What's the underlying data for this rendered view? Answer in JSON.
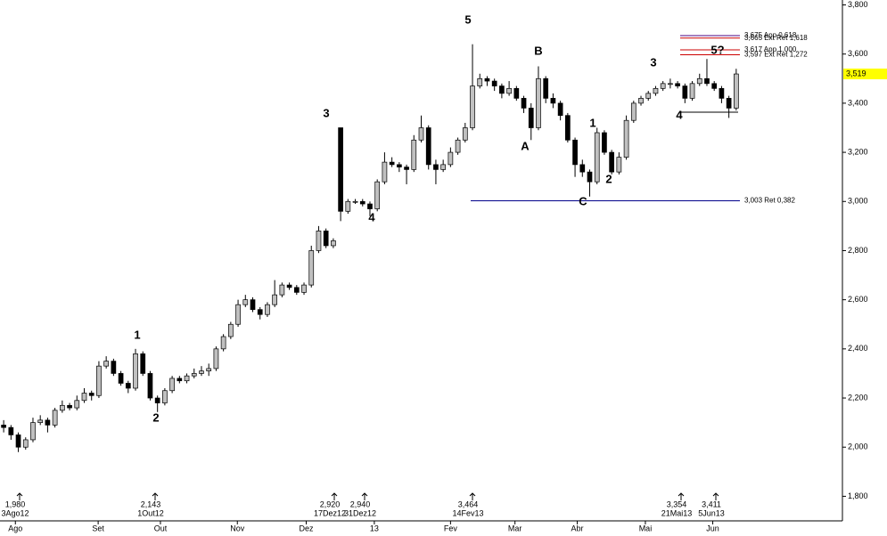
{
  "chart_data": {
    "type": "candlestick",
    "candles": [
      [
        2090,
        2110,
        2060,
        2080
      ],
      [
        2080,
        2090,
        2030,
        2050
      ],
      [
        2050,
        2060,
        1980,
        2000
      ],
      [
        2000,
        2040,
        1990,
        2030
      ],
      [
        2030,
        2120,
        2020,
        2100
      ],
      [
        2100,
        2130,
        2090,
        2110
      ],
      [
        2110,
        2120,
        2060,
        2090
      ],
      [
        2090,
        2160,
        2080,
        2150
      ],
      [
        2150,
        2190,
        2140,
        2170
      ],
      [
        2170,
        2180,
        2150,
        2160
      ],
      [
        2160,
        2210,
        2150,
        2190
      ],
      [
        2190,
        2240,
        2180,
        2220
      ],
      [
        2220,
        2230,
        2190,
        2210
      ],
      [
        2210,
        2350,
        2200,
        2330
      ],
      [
        2330,
        2370,
        2320,
        2350
      ],
      [
        2350,
        2360,
        2290,
        2300
      ],
      [
        2300,
        2310,
        2250,
        2260
      ],
      [
        2260,
        2270,
        2220,
        2240
      ],
      [
        2240,
        2400,
        2230,
        2380
      ],
      [
        2380,
        2390,
        2290,
        2300
      ],
      [
        2300,
        2310,
        2190,
        2200
      ],
      [
        2200,
        2210,
        2143,
        2180
      ],
      [
        2180,
        2240,
        2170,
        2230
      ],
      [
        2230,
        2290,
        2220,
        2280
      ],
      [
        2280,
        2290,
        2260,
        2270
      ],
      [
        2270,
        2300,
        2260,
        2290
      ],
      [
        2290,
        2320,
        2280,
        2300
      ],
      [
        2300,
        2330,
        2290,
        2310
      ],
      [
        2310,
        2340,
        2290,
        2320
      ],
      [
        2320,
        2410,
        2310,
        2400
      ],
      [
        2400,
        2460,
        2390,
        2450
      ],
      [
        2450,
        2510,
        2440,
        2500
      ],
      [
        2500,
        2600,
        2490,
        2580
      ],
      [
        2580,
        2620,
        2570,
        2600
      ],
      [
        2600,
        2610,
        2550,
        2560
      ],
      [
        2560,
        2570,
        2520,
        2540
      ],
      [
        2540,
        2590,
        2530,
        2580
      ],
      [
        2580,
        2680,
        2570,
        2620
      ],
      [
        2620,
        2670,
        2610,
        2660
      ],
      [
        2660,
        2670,
        2640,
        2650
      ],
      [
        2650,
        2660,
        2620,
        2630
      ],
      [
        2630,
        2670,
        2620,
        2660
      ],
      [
        2660,
        2820,
        2650,
        2800
      ],
      [
        2800,
        2900,
        2790,
        2880
      ],
      [
        2880,
        2890,
        2810,
        2820
      ],
      [
        2820,
        2850,
        2810,
        2840
      ],
      [
        3300,
        3300,
        2920,
        2960
      ],
      [
        2960,
        3010,
        2950,
        3000
      ],
      [
        3000,
        3010,
        2990,
        3000
      ],
      [
        3000,
        3010,
        2980,
        2990
      ],
      [
        2990,
        3000,
        2940,
        2970
      ],
      [
        2970,
        3090,
        2960,
        3080
      ],
      [
        3080,
        3200,
        3070,
        3160
      ],
      [
        3160,
        3180,
        3140,
        3150
      ],
      [
        3150,
        3160,
        3120,
        3140
      ],
      [
        3140,
        3150,
        3070,
        3130
      ],
      [
        3130,
        3270,
        3120,
        3250
      ],
      [
        3250,
        3350,
        3240,
        3300
      ],
      [
        3300,
        3310,
        3130,
        3150
      ],
      [
        3150,
        3170,
        3070,
        3130
      ],
      [
        3130,
        3170,
        3120,
        3150
      ],
      [
        3150,
        3220,
        3140,
        3200
      ],
      [
        3200,
        3260,
        3190,
        3250
      ],
      [
        3250,
        3320,
        3240,
        3300
      ],
      [
        3300,
        3640,
        3290,
        3470
      ],
      [
        3470,
        3520,
        3460,
        3500
      ],
      [
        3500,
        3510,
        3470,
        3490
      ],
      [
        3490,
        3500,
        3450,
        3470
      ],
      [
        3470,
        3480,
        3420,
        3440
      ],
      [
        3440,
        3490,
        3430,
        3460
      ],
      [
        3460,
        3470,
        3410,
        3420
      ],
      [
        3420,
        3430,
        3360,
        3380
      ],
      [
        3380,
        3400,
        3250,
        3300
      ],
      [
        3300,
        3550,
        3290,
        3500
      ],
      [
        3500,
        3510,
        3400,
        3420
      ],
      [
        3420,
        3440,
        3380,
        3400
      ],
      [
        3400,
        3410,
        3330,
        3350
      ],
      [
        3350,
        3360,
        3240,
        3250
      ],
      [
        3250,
        3260,
        3100,
        3150
      ],
      [
        3150,
        3170,
        3100,
        3120
      ],
      [
        3120,
        3130,
        3020,
        3080
      ],
      [
        3080,
        3300,
        3070,
        3280
      ],
      [
        3280,
        3290,
        3190,
        3200
      ],
      [
        3200,
        3210,
        3110,
        3120
      ],
      [
        3120,
        3200,
        3110,
        3180
      ],
      [
        3180,
        3350,
        3170,
        3330
      ],
      [
        3330,
        3410,
        3320,
        3400
      ],
      [
        3400,
        3430,
        3390,
        3420
      ],
      [
        3420,
        3450,
        3410,
        3440
      ],
      [
        3440,
        3470,
        3430,
        3460
      ],
      [
        3460,
        3490,
        3450,
        3480
      ],
      [
        3480,
        3500,
        3460,
        3480
      ],
      [
        3480,
        3490,
        3460,
        3470
      ],
      [
        3470,
        3480,
        3400,
        3420
      ],
      [
        3420,
        3490,
        3410,
        3480
      ],
      [
        3480,
        3520,
        3470,
        3500
      ],
      [
        3500,
        3580,
        3470,
        3480
      ],
      [
        3480,
        3490,
        3450,
        3460
      ],
      [
        3460,
        3470,
        3400,
        3420
      ],
      [
        3420,
        3430,
        3340,
        3380
      ],
      [
        3380,
        3540,
        3370,
        3519
      ]
    ],
    "up_color": "#c0c0c0",
    "down_color": "#000000",
    "xlim": [
      -0.5,
      114.5
    ],
    "xticks": [
      {
        "value": 1.6,
        "label": "Ago"
      },
      {
        "value": 12.9,
        "label": "Set"
      },
      {
        "value": 21.4,
        "label": "Out"
      },
      {
        "value": 31.9,
        "label": "Nov"
      },
      {
        "value": 41.3,
        "label": "Dez"
      },
      {
        "value": 50.6,
        "label": "13"
      },
      {
        "value": 61,
        "label": "Fev"
      },
      {
        "value": 69.8,
        "label": "Mar"
      },
      {
        "value": 78.3,
        "label": "Abr"
      },
      {
        "value": 87.6,
        "label": "Mai"
      },
      {
        "value": 96.8,
        "label": "Jun"
      }
    ],
    "ylim": [
      1700,
      3820
    ],
    "yticks": [
      {
        "value": 1800,
        "label": "1,800"
      },
      {
        "value": 2000,
        "label": "2,000"
      },
      {
        "value": 2200,
        "label": "2,200"
      },
      {
        "value": 2400,
        "label": "2,400"
      },
      {
        "value": 2600,
        "label": "2,600"
      },
      {
        "value": 2800,
        "label": "2,800"
      },
      {
        "value": 3000,
        "label": "3,000"
      },
      {
        "value": 3200,
        "label": "3,200"
      },
      {
        "value": 3400,
        "label": "3,400"
      },
      {
        "value": 3600,
        "label": "3,600"
      },
      {
        "value": 3800,
        "label": "3,800"
      }
    ],
    "last_price": {
      "value": 3519,
      "label": "3,519",
      "color": "#ffff00"
    },
    "levels": [
      {
        "value": 3003,
        "label": "3,003 Ret 0,382",
        "color": "#00008b"
      },
      {
        "value": 3675,
        "label": "3,675 App 0,618",
        "color": "#4b0082"
      },
      {
        "value": 3665,
        "label": "3,665 Ext Ret 1,618",
        "color": "#cc0000"
      },
      {
        "value": 3617,
        "label": "3,617 App 1,000",
        "color": "#cc0000"
      },
      {
        "value": 3597,
        "label": "3,597 Ext Ret 1,272",
        "color": "#cc0000"
      }
    ],
    "waves": [
      {
        "text": "1",
        "color": "#008000"
      },
      {
        "text": "2",
        "color": "#008000"
      },
      {
        "text": "3",
        "color": "#008000"
      },
      {
        "text": "4",
        "color": "#008000"
      },
      {
        "text": "5",
        "color": "#008000"
      },
      {
        "text": "A",
        "color": "#00008b"
      },
      {
        "text": "B",
        "color": "#00008b"
      },
      {
        "text": "C",
        "color": "#00008b"
      },
      {
        "text": "1",
        "color": "#008000"
      },
      {
        "text": "2",
        "color": "#008000"
      },
      {
        "text": "3",
        "color": "#008000"
      },
      {
        "text": "4",
        "color": "#008000"
      },
      {
        "text": "5?",
        "color": "#808000"
      }
    ],
    "markers": [
      {
        "value": 1980,
        "value_label": "1,980",
        "date": "3Ago12"
      },
      {
        "value": 2143,
        "value_label": "2,143",
        "date": "1Out12"
      },
      {
        "value": 2920,
        "value_label": "2,920",
        "date": "17Dez12"
      },
      {
        "value": 2940,
        "value_label": "2,940",
        "date": "31Dez12"
      },
      {
        "value": 3464,
        "value_label": "3,464",
        "date": "14Fev13"
      },
      {
        "value": 3354,
        "value_label": "3,354",
        "date": "21Mai13"
      },
      {
        "value": 3411,
        "value_label": "3,411",
        "date": "5Jun13"
      }
    ]
  }
}
